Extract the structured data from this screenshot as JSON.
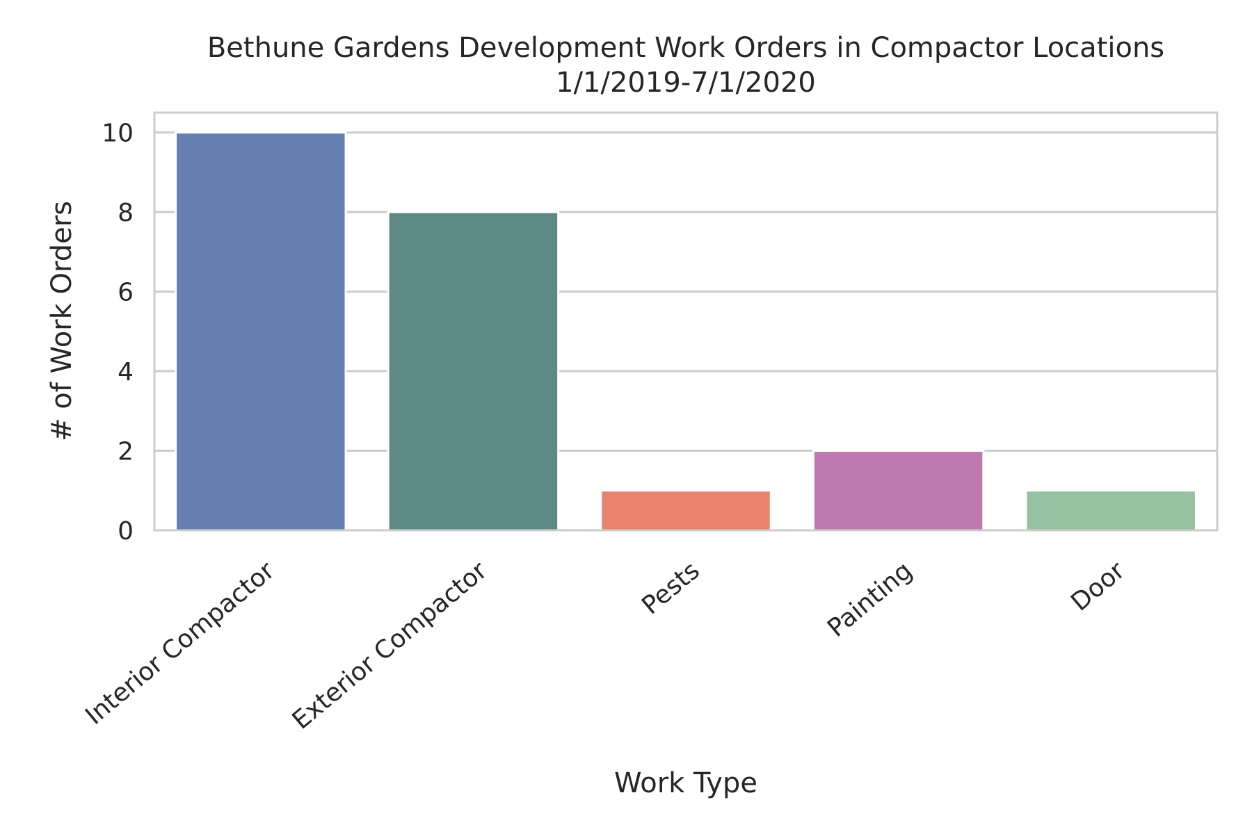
{
  "chart_data": {
    "type": "bar",
    "title": "Bethune Gardens Development Work Orders in Compactor Locations",
    "subtitle": "1/1/2019-7/1/2020",
    "xlabel": "Work Type",
    "ylabel": "# of Work Orders",
    "categories": [
      "Interior Compactor",
      "Exterior Compactor",
      "Pests",
      "Painting",
      "Door"
    ],
    "values": [
      10,
      8,
      1,
      2,
      1
    ],
    "colors": [
      "#6580b0",
      "#5d8986",
      "#e8846d",
      "#bd7aae",
      "#95c0a2"
    ],
    "ylim": [
      0,
      10.5
    ],
    "yticks": [
      0,
      2,
      4,
      6,
      8,
      10
    ],
    "grid": true,
    "legend": "none"
  }
}
